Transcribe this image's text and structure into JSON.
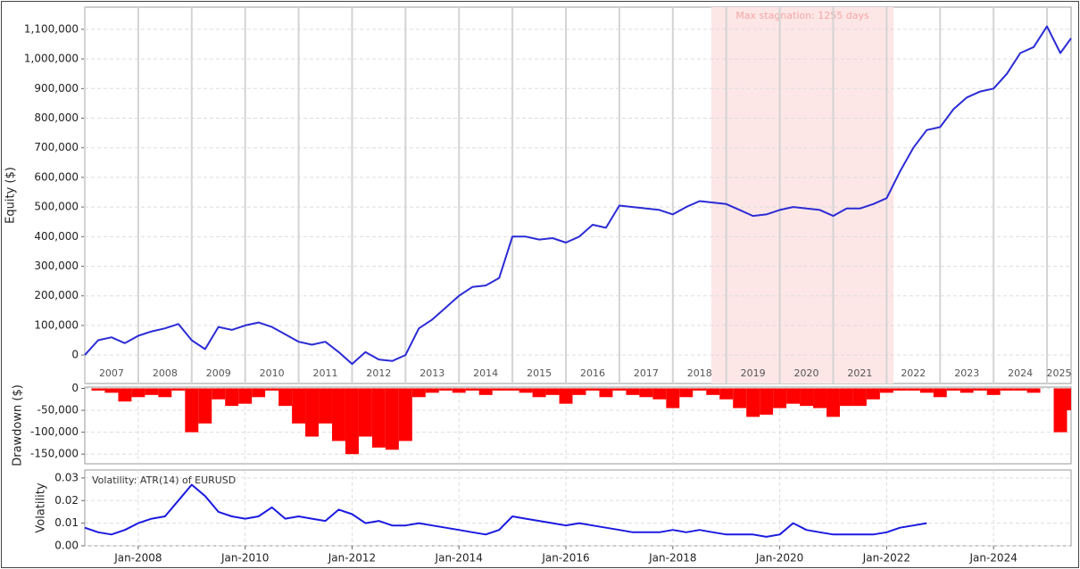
{
  "chart_data": [
    {
      "type": "line",
      "y_label": "Equity ($)",
      "color": "#2b2bd6",
      "stagnation": {
        "start": 2018.72,
        "end": 2022.13,
        "label": "Max stagnation: 1255 days",
        "color": "#fde6e6"
      },
      "x": [
        2007,
        2007.25,
        2007.5,
        2007.75,
        2008,
        2008.25,
        2008.5,
        2008.75,
        2009,
        2009.25,
        2009.5,
        2009.75,
        2010,
        2010.25,
        2010.5,
        2010.75,
        2011,
        2011.25,
        2011.5,
        2011.75,
        2012,
        2012.25,
        2012.5,
        2012.75,
        2013,
        2013.25,
        2013.5,
        2013.75,
        2014,
        2014.25,
        2014.5,
        2014.75,
        2015,
        2015.25,
        2015.5,
        2015.75,
        2016,
        2016.25,
        2016.5,
        2016.75,
        2017,
        2017.25,
        2017.5,
        2017.75,
        2018,
        2018.25,
        2018.5,
        2018.75,
        2019,
        2019.25,
        2019.5,
        2019.75,
        2020,
        2020.25,
        2020.5,
        2020.75,
        2021,
        2021.25,
        2021.5,
        2021.75,
        2022,
        2022.25,
        2022.5,
        2022.75,
        2023,
        2023.25,
        2023.5,
        2023.75,
        2024,
        2024.25,
        2024.5,
        2024.75,
        2025,
        2025.25,
        2025.45
      ],
      "values": [
        0,
        50000,
        60000,
        40000,
        65000,
        80000,
        90000,
        105000,
        50000,
        20000,
        95000,
        85000,
        100000,
        110000,
        95000,
        70000,
        45000,
        35000,
        45000,
        10000,
        -30000,
        10000,
        -15000,
        -20000,
        0,
        90000,
        120000,
        160000,
        200000,
        230000,
        235000,
        260000,
        400000,
        400000,
        390000,
        395000,
        380000,
        400000,
        440000,
        430000,
        505000,
        500000,
        495000,
        490000,
        475000,
        500000,
        520000,
        515000,
        510000,
        490000,
        470000,
        475000,
        490000,
        500000,
        495000,
        490000,
        470000,
        495000,
        495000,
        510000,
        530000,
        620000,
        700000,
        760000,
        770000,
        830000,
        870000,
        890000,
        900000,
        950000,
        1020000,
        1040000,
        1110000,
        1020000,
        1070000
      ],
      "xlim": [
        2007,
        2025.45
      ],
      "xticks": [
        2007,
        2008,
        2009,
        2010,
        2011,
        2012,
        2013,
        2014,
        2015,
        2016,
        2017,
        2018,
        2019,
        2020,
        2021,
        2022,
        2023,
        2024,
        2025
      ],
      "ylim": [
        -96000,
        1175000
      ],
      "yticks": [
        0,
        {
          "value": 100000,
          "label": "100,000"
        },
        {
          "value": 200000,
          "label": "200,000"
        },
        {
          "value": 300000,
          "label": "300,000"
        },
        {
          "value": 400000,
          "label": "400,000"
        },
        {
          "value": 500000,
          "label": "500,000"
        },
        {
          "value": 600000,
          "label": "600,000"
        },
        {
          "value": 700000,
          "label": "700,000"
        },
        {
          "value": 800000,
          "label": "800,000"
        },
        {
          "value": 900000,
          "label": "900,000"
        },
        {
          "value": 1000000,
          "label": "1,000,000"
        },
        {
          "value": 1100000,
          "label": "1,100,000"
        }
      ],
      "grid": true
    },
    {
      "type": "bar",
      "y_label": "Drawdown ($)",
      "color": "#ff0000",
      "x": [
        2007,
        2007.25,
        2007.5,
        2007.75,
        2008,
        2008.25,
        2008.5,
        2008.75,
        2009,
        2009.25,
        2009.5,
        2009.75,
        2010,
        2010.25,
        2010.5,
        2010.75,
        2011,
        2011.25,
        2011.5,
        2011.75,
        2012,
        2012.25,
        2012.5,
        2012.75,
        2013,
        2013.25,
        2013.5,
        2013.75,
        2014,
        2014.25,
        2014.5,
        2014.75,
        2015,
        2015.25,
        2015.5,
        2015.75,
        2016,
        2016.25,
        2016.5,
        2016.75,
        2017,
        2017.25,
        2017.5,
        2017.75,
        2018,
        2018.25,
        2018.5,
        2018.75,
        2019,
        2019.25,
        2019.5,
        2019.75,
        2020,
        2020.25,
        2020.5,
        2020.75,
        2021,
        2021.25,
        2021.5,
        2021.75,
        2022,
        2022.25,
        2022.5,
        2022.75,
        2023,
        2023.25,
        2023.5,
        2023.75,
        2024,
        2024.25,
        2024.5,
        2024.75,
        2025,
        2025.25,
        2025.45
      ],
      "values": [
        0,
        -5000,
        -10000,
        -30000,
        -20000,
        -15000,
        -20000,
        -5000,
        -100000,
        -80000,
        -25000,
        -40000,
        -35000,
        -20000,
        -5000,
        -40000,
        -80000,
        -110000,
        -80000,
        -120000,
        -150000,
        -110000,
        -135000,
        -140000,
        -120000,
        -20000,
        -10000,
        -5000,
        -10000,
        -5000,
        -15000,
        -5000,
        -5000,
        -10000,
        -20000,
        -15000,
        -35000,
        -15000,
        -5000,
        -20000,
        -5000,
        -15000,
        -20000,
        -25000,
        -45000,
        -20000,
        -5000,
        -15000,
        -25000,
        -45000,
        -65000,
        -60000,
        -45000,
        -35000,
        -40000,
        -45000,
        -65000,
        -40000,
        -40000,
        -25000,
        -10000,
        -5000,
        -5000,
        -10000,
        -20000,
        -5000,
        -10000,
        -5000,
        -15000,
        -5000,
        -5000,
        -10000,
        0,
        -100000,
        -50000
      ],
      "xlim": [
        2007,
        2025.45
      ],
      "ylim": [
        -172000,
        3000
      ],
      "yticks": [
        0,
        {
          "value": -50000,
          "label": "-50,000"
        },
        {
          "value": -100000,
          "label": "-100,000"
        },
        {
          "value": -150000,
          "label": "-150,000"
        }
      ],
      "grid": true
    },
    {
      "type": "line",
      "y_label": "Volatility",
      "annotation": "Volatility: ATR(14) of EURUSD",
      "color": "#1a1ae0",
      "x": [
        2007,
        2007.25,
        2007.5,
        2007.75,
        2008,
        2008.25,
        2008.5,
        2008.75,
        2009,
        2009.25,
        2009.5,
        2009.75,
        2010,
        2010.25,
        2010.5,
        2010.75,
        2011,
        2011.25,
        2011.5,
        2011.75,
        2012,
        2012.25,
        2012.5,
        2012.75,
        2013,
        2013.25,
        2013.5,
        2013.75,
        2014,
        2014.25,
        2014.5,
        2014.75,
        2015,
        2015.25,
        2015.5,
        2015.75,
        2016,
        2016.25,
        2016.5,
        2016.75,
        2017,
        2017.25,
        2017.5,
        2017.75,
        2018,
        2018.25,
        2018.5,
        2018.75,
        2019,
        2019.25,
        2019.5,
        2019.75,
        2020,
        2020.25,
        2020.5,
        2020.75,
        2021,
        2021.25,
        2021.5,
        2021.75,
        2022,
        2022.25,
        2022.5,
        2022.75,
        2023,
        2023.25,
        2023.5,
        2023.75,
        2024,
        2024.25,
        2024.5,
        2024.75,
        2025,
        2025.25,
        2025.45
      ],
      "values": [
        0.008,
        0.006,
        0.005,
        0.007,
        0.01,
        0.012,
        0.013,
        0.02,
        0.027,
        0.022,
        0.015,
        0.013,
        0.012,
        0.013,
        0.017,
        0.012,
        0.013,
        0.012,
        0.011,
        0.016,
        0.014,
        0.01,
        0.011,
        0.009,
        0.009,
        0.01,
        0.009,
        0.008,
        0.007,
        0.006,
        0.005,
        0.007,
        0.013,
        0.012,
        0.011,
        0.01,
        0.009,
        0.01,
        0.009,
        0.008,
        0.007,
        0.006,
        0.006,
        0.006,
        0.007,
        0.006,
        0.007,
        0.006,
        0.005,
        0.005,
        0.005,
        0.004,
        0.005,
        0.01,
        0.007,
        0.006,
        0.005,
        0.005,
        0.005,
        0.005,
        0.006,
        0.008,
        0.009,
        0.01,
        null,
        null,
        null,
        null,
        null,
        null,
        null,
        null,
        null,
        null,
        null
      ],
      "xlim": [
        2007,
        2025.45
      ],
      "xticks": [
        {
          "value": 2008,
          "label": "Jan-2008"
        },
        {
          "value": 2010,
          "label": "Jan-2010"
        },
        {
          "value": 2012,
          "label": "Jan-2012"
        },
        {
          "value": 2014,
          "label": "Jan-2014"
        },
        {
          "value": 2016,
          "label": "Jan-2016"
        },
        {
          "value": 2018,
          "label": "Jan-2018"
        },
        {
          "value": 2020,
          "label": "Jan-2020"
        },
        {
          "value": 2022,
          "label": "Jan-2022"
        },
        {
          "value": 2024,
          "label": "Jan-2024"
        }
      ],
      "ylim": [
        0,
        0.0335
      ],
      "yticks": [
        {
          "value": 0,
          "label": "0.00"
        },
        {
          "value": 0.01,
          "label": "0.01"
        },
        {
          "value": 0.02,
          "label": "0.02"
        },
        {
          "value": 0.03,
          "label": "0.03"
        }
      ],
      "grid": true
    }
  ]
}
